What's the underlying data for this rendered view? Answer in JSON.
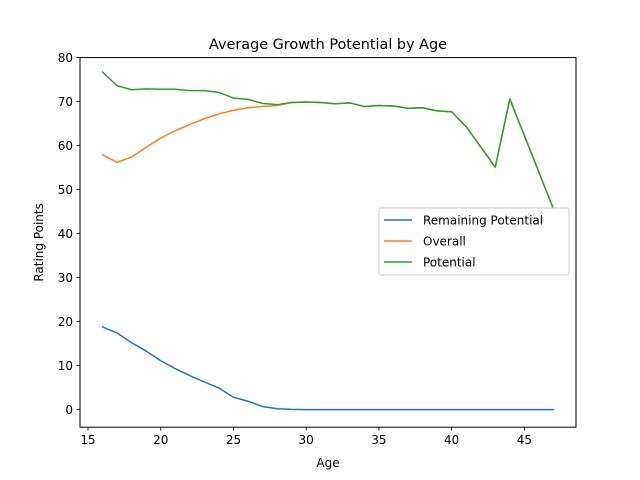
{
  "chart_data": {
    "type": "line",
    "title": "Average Growth Potential by Age",
    "xlabel": "Age",
    "ylabel": "Rating Points",
    "xlim": [
      14.45,
      48.55
    ],
    "ylim": [
      -4.0,
      80.0
    ],
    "xticks": [
      15,
      20,
      25,
      30,
      35,
      40,
      45
    ],
    "yticks": [
      0,
      10,
      20,
      30,
      40,
      50,
      60,
      70,
      80
    ],
    "grid": false,
    "legend_position": "center-right",
    "x": [
      16,
      17,
      18,
      19,
      20,
      21,
      22,
      23,
      24,
      25,
      26,
      27,
      28,
      29,
      30,
      31,
      32,
      33,
      34,
      35,
      36,
      37,
      38,
      39,
      40,
      41,
      43,
      44,
      47
    ],
    "series": [
      {
        "name": "Remaining Potential",
        "color": "#1f77b4",
        "values": [
          18.8,
          17.4,
          15.2,
          13.3,
          11.1,
          9.3,
          7.7,
          6.3,
          4.9,
          2.8,
          1.9,
          0.7,
          0.2,
          0.05,
          0,
          0,
          0,
          0,
          0,
          0,
          0,
          0,
          0,
          0,
          0,
          0,
          0,
          0,
          0
        ]
      },
      {
        "name": "Overall",
        "color": "#ff7f0e",
        "values": [
          57.9,
          56.2,
          57.4,
          59.6,
          61.7,
          63.4,
          64.8,
          66.1,
          67.2,
          68.0,
          68.6,
          68.9,
          69.1,
          69.8,
          69.9,
          69.8,
          69.5,
          69.7,
          68.9,
          69.1,
          69.0,
          68.5,
          68.6,
          67.9,
          67.7,
          64.3,
          55.1,
          70.6,
          45.6
        ]
      },
      {
        "name": "Potential",
        "color": "#2ca02c",
        "values": [
          76.7,
          73.6,
          72.7,
          72.9,
          72.8,
          72.8,
          72.5,
          72.5,
          72.1,
          70.8,
          70.5,
          69.6,
          69.3,
          69.8,
          69.9,
          69.8,
          69.5,
          69.7,
          68.9,
          69.1,
          69.0,
          68.5,
          68.6,
          67.9,
          67.7,
          64.3,
          55.1,
          70.6,
          45.6
        ]
      }
    ]
  }
}
